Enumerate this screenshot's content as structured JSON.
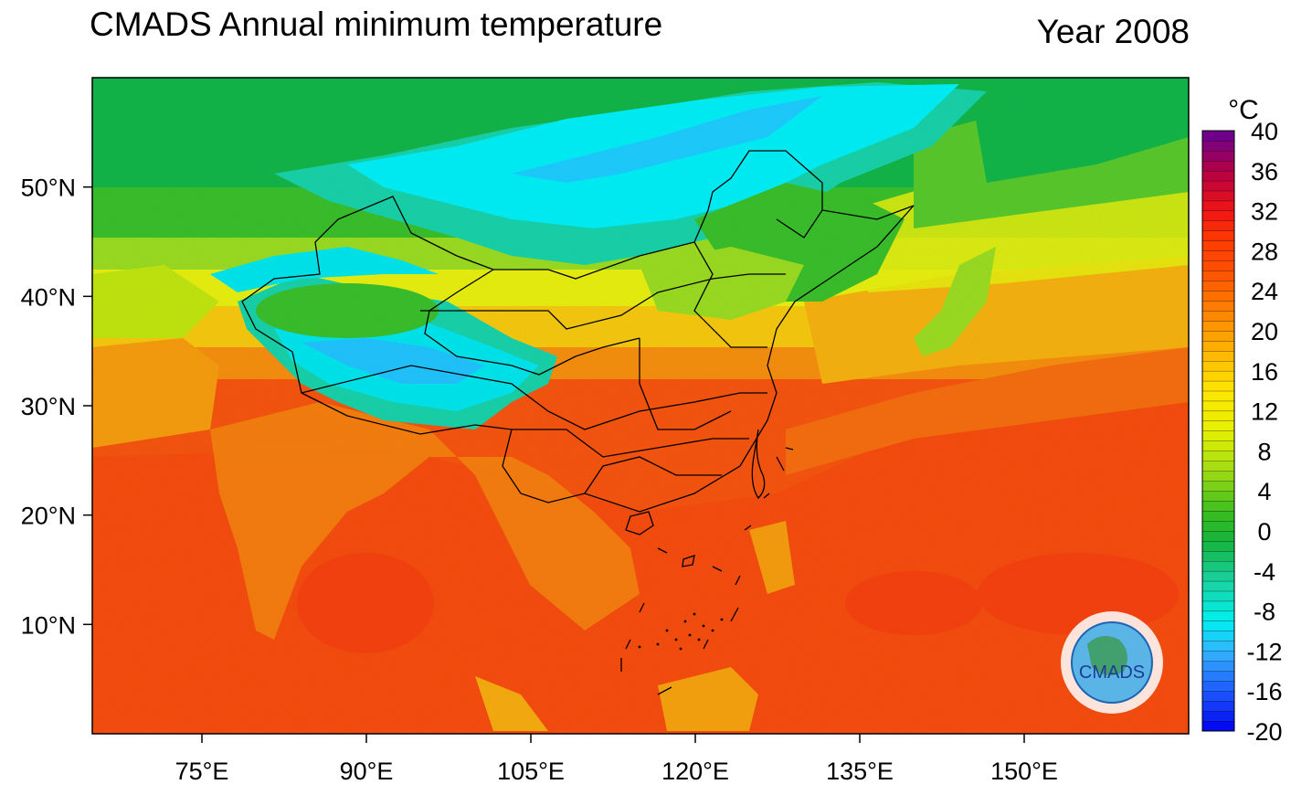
{
  "title": "CMADS Annual minimum temperature",
  "subtitle": "Year 2008",
  "map": {
    "lon_range": [
      65,
      165
    ],
    "lat_range": [
      0,
      60
    ],
    "lat_ticks": [
      {
        "value": 10,
        "label": "10°N"
      },
      {
        "value": 20,
        "label": "20°N"
      },
      {
        "value": 30,
        "label": "30°N"
      },
      {
        "value": 40,
        "label": "40°N"
      },
      {
        "value": 50,
        "label": "50°N"
      }
    ],
    "lon_ticks": [
      {
        "value": 75,
        "label": "75°E"
      },
      {
        "value": 90,
        "label": "90°E"
      },
      {
        "value": 105,
        "label": "105°E"
      },
      {
        "value": 120,
        "label": "120°E"
      },
      {
        "value": 135,
        "label": "135°E"
      },
      {
        "value": 150,
        "label": "150°E"
      }
    ]
  },
  "colorbar": {
    "unit": "°C",
    "min": -20,
    "max": 40,
    "step": 1,
    "labels": [
      "40",
      "36",
      "32",
      "28",
      "24",
      "20",
      "16",
      "12",
      "8",
      "4",
      "0",
      "-4",
      "-8",
      "-12",
      "-16",
      "-20"
    ],
    "colors": [
      {
        "v": -20,
        "c": "#0000f0"
      },
      {
        "v": -16,
        "c": "#1e5aff"
      },
      {
        "v": -12,
        "c": "#32b4ff"
      },
      {
        "v": -9,
        "c": "#00f0f0"
      },
      {
        "v": -5,
        "c": "#19d2a0"
      },
      {
        "v": -1,
        "c": "#14b43c"
      },
      {
        "v": 2,
        "c": "#3cbe1e"
      },
      {
        "v": 6,
        "c": "#a0dc14"
      },
      {
        "v": 10,
        "c": "#e6f000"
      },
      {
        "v": 14,
        "c": "#ffe600"
      },
      {
        "v": 18,
        "c": "#ffb400"
      },
      {
        "v": 22,
        "c": "#ff8200"
      },
      {
        "v": 26,
        "c": "#ff5000"
      },
      {
        "v": 29,
        "c": "#ff3c00"
      },
      {
        "v": 32,
        "c": "#f01414"
      },
      {
        "v": 36,
        "c": "#b40046"
      },
      {
        "v": 40,
        "c": "#640096"
      }
    ]
  },
  "logo": {
    "text": "CMADS",
    "icon": "globe-logo-icon"
  }
}
